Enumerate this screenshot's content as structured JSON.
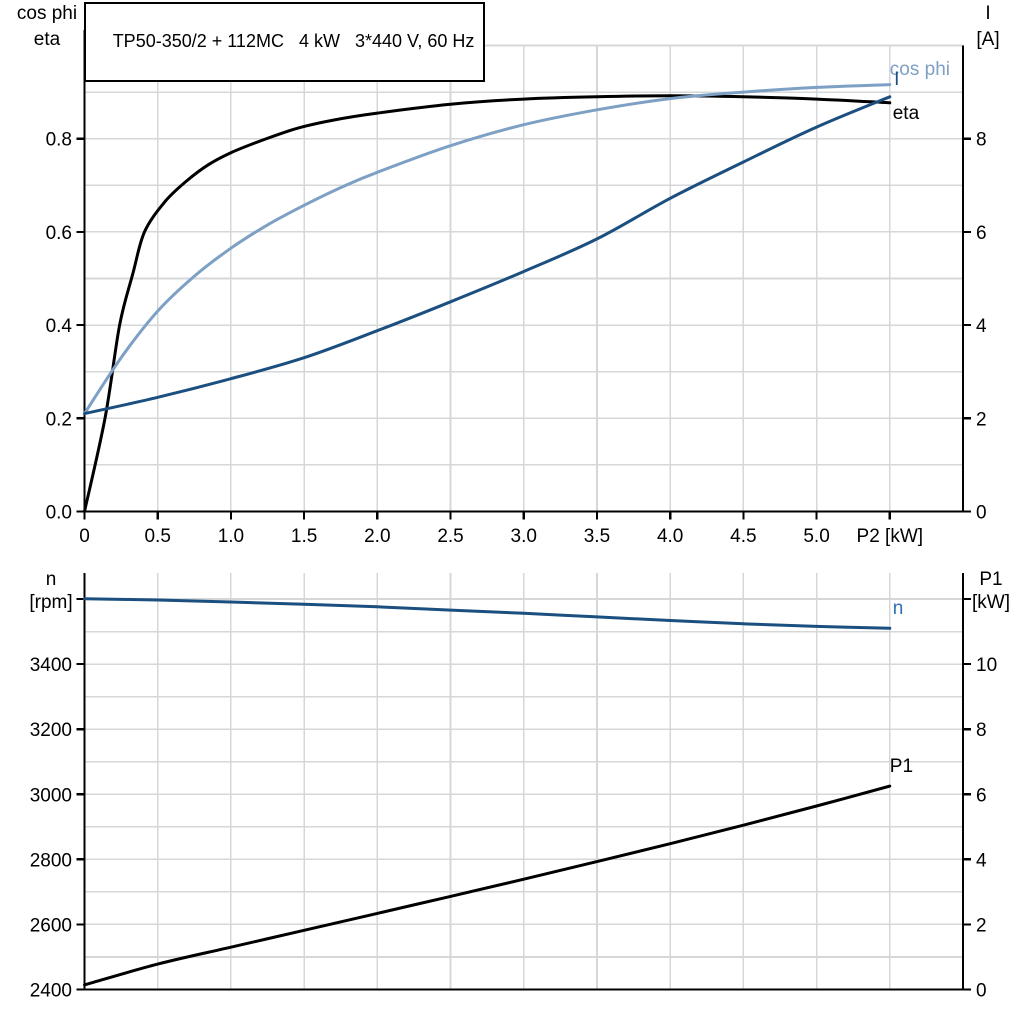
{
  "title": "TP50-350/2 + 112MC   4 kW   3*440 V, 60 Hz",
  "colors": {
    "background": "#ffffff",
    "grid": "#d5d7d9",
    "axis": "#000000",
    "curve_black": "#000000",
    "curve_light_blue": "#7da0c4",
    "curve_dark_blue": "#1b4f7f",
    "n_label_blue": "#2e6fb8"
  },
  "chart_data": [
    {
      "id": "motor-efficiency-chart",
      "type": "line",
      "x_axis": {
        "label": "P2 [kW]",
        "range": [
          0,
          6
        ],
        "grid_step": 0.5,
        "grid_max": 5.5,
        "tick_values": [
          0,
          0.5,
          1,
          1.5,
          2,
          2.5,
          3,
          3.5,
          4,
          4.5,
          5,
          5.5
        ],
        "tick_labels": [
          "0",
          "0.5",
          "1.0",
          "1.5",
          "2.0",
          "2.5",
          "3.0",
          "3.5",
          "4.0",
          "4.5",
          "5.0",
          "P2 [kW]"
        ]
      },
      "left_axis": {
        "header": [
          "cos phi",
          "eta"
        ],
        "range": [
          0,
          1
        ],
        "grid_step": 0.1,
        "grid_max": 1,
        "tick_values": [
          0,
          0.2,
          0.4,
          0.6,
          0.8
        ],
        "tick_labels": [
          "0.0",
          "0.2",
          "0.4",
          "0.6",
          "0.8"
        ]
      },
      "right_axis": {
        "header": [
          "I",
          "[A]"
        ],
        "range": [
          0,
          10
        ],
        "tick_values": [
          0,
          2,
          4,
          6,
          8
        ],
        "tick_labels": [
          "0",
          "2",
          "4",
          "6",
          "8"
        ]
      },
      "series": [
        {
          "name": "eta",
          "axis": "left",
          "color": "#000000",
          "label": "eta",
          "label_color": "#000000",
          "label_at": [
            5.52,
            0.857
          ],
          "x": [
            0,
            0.14,
            0.24,
            0.33,
            0.41,
            0.55,
            0.7,
            0.85,
            1.0,
            1.2,
            1.45,
            1.7,
            2.0,
            2.5,
            3.0,
            3.5,
            4.0,
            4.5,
            5.0,
            5.5
          ],
          "y": [
            0,
            0.2,
            0.4,
            0.51,
            0.6,
            0.665,
            0.71,
            0.745,
            0.77,
            0.795,
            0.822,
            0.84,
            0.855,
            0.874,
            0.885,
            0.89,
            0.892,
            0.89,
            0.885,
            0.877
          ]
        },
        {
          "name": "cos-phi",
          "axis": "left",
          "color": "#7da0c4",
          "label": "cos phi",
          "label_color": "#7da0c4",
          "label_at": [
            5.5,
            0.952
          ],
          "x": [
            0,
            0.25,
            0.5,
            0.75,
            1.0,
            1.25,
            1.5,
            1.75,
            2.0,
            2.5,
            3.0,
            3.5,
            4.0,
            4.5,
            5.0,
            5.5
          ],
          "y": [
            0.21,
            0.33,
            0.43,
            0.505,
            0.565,
            0.615,
            0.657,
            0.695,
            0.728,
            0.785,
            0.83,
            0.862,
            0.886,
            0.9,
            0.91,
            0.916
          ]
        },
        {
          "name": "current",
          "axis": "right",
          "color": "#1b4f7f",
          "label": "I",
          "label_color": "#1b4f7f",
          "label_at": [
            5.53,
            9.3
          ],
          "x": [
            0,
            0.5,
            1.0,
            1.5,
            2.0,
            2.5,
            3.0,
            3.5,
            4.0,
            4.5,
            5.0,
            5.5
          ],
          "y": [
            2.1,
            2.45,
            2.85,
            3.3,
            3.88,
            4.5,
            5.15,
            5.85,
            6.72,
            7.5,
            8.25,
            8.9
          ]
        }
      ]
    },
    {
      "id": "speed-power-chart",
      "type": "line",
      "x_axis": {
        "label": "",
        "range": [
          0,
          6
        ],
        "grid_step": 0.5,
        "grid_max": 5.5,
        "tick_values": [],
        "tick_labels": []
      },
      "left_axis": {
        "header": [
          "n",
          "[rpm]"
        ],
        "range": [
          2400,
          3680
        ],
        "grid_step": 100,
        "grid_max": 3600,
        "tick_values": [
          2400,
          2600,
          2800,
          3000,
          3200,
          3400,
          3600
        ],
        "tick_labels": [
          "2400",
          "2600",
          "2800",
          "3000",
          "3200",
          "3400",
          ""
        ]
      },
      "right_axis": {
        "header": [
          "P1",
          "[kW]"
        ],
        "range": [
          0,
          12.8
        ],
        "tick_values": [
          0,
          2,
          4,
          6,
          8,
          10,
          12
        ],
        "tick_labels": [
          "0",
          "2",
          "4",
          "6",
          "8",
          "10",
          ""
        ]
      },
      "series": [
        {
          "name": "speed",
          "axis": "left",
          "color": "#1b4f7f",
          "label": "n",
          "label_color": "#2e6fb8",
          "label_at": [
            5.52,
            3576
          ],
          "x": [
            0,
            0.5,
            1,
            1.5,
            2,
            2.5,
            3,
            3.5,
            4,
            4.5,
            5,
            5.5
          ],
          "y": [
            3601,
            3597,
            3591,
            3584,
            3576,
            3566,
            3556,
            3545,
            3534,
            3524,
            3516,
            3510
          ]
        },
        {
          "name": "input-power",
          "axis": "right",
          "color": "#000000",
          "label": "P1",
          "label_color": "#000000",
          "label_at": [
            5.5,
            6.9
          ],
          "x": [
            0,
            0.5,
            1,
            1.5,
            2,
            2.5,
            3,
            3.5,
            4,
            4.5,
            5,
            5.5
          ],
          "y": [
            0.14,
            0.78,
            1.3,
            1.82,
            2.34,
            2.86,
            3.39,
            3.93,
            4.48,
            5.05,
            5.64,
            6.25
          ]
        }
      ]
    }
  ]
}
